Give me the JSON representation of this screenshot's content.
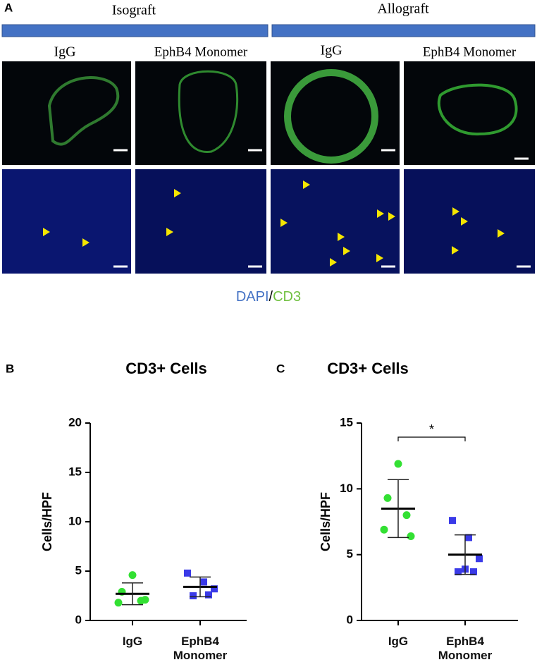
{
  "panel_a": {
    "label": "A",
    "groups": [
      "Isograft",
      "Allograft"
    ],
    "columns": [
      "IgG",
      "EphB4 Monomer",
      "IgG",
      "EphB4 Monomer"
    ],
    "stain": {
      "dapi": "DAPI",
      "separator": "/",
      "cd3": "CD3"
    }
  },
  "chart_data": [
    {
      "type": "scatter",
      "panel": "B",
      "title": "CD3+ Cells",
      "y_label": "Cells/HPF",
      "ylim": [
        0,
        20
      ],
      "yticks": [
        0,
        5,
        10,
        15,
        20
      ],
      "series": [
        {
          "name": "IgG",
          "color": "#33e033",
          "marker": "circle",
          "values": [
            4.6,
            2.9,
            2.0,
            1.8,
            2.1
          ],
          "mean": 2.7,
          "sd": 1.1
        },
        {
          "name": "EphB4 Monomer",
          "color": "#3a3ae8",
          "marker": "square",
          "values": [
            4.8,
            3.9,
            3.2,
            2.5,
            2.6
          ],
          "mean": 3.4,
          "sd": 1.0
        }
      ]
    },
    {
      "type": "scatter",
      "panel": "C",
      "title": "CD3+ Cells",
      "y_label": "Cells/HPF",
      "ylim": [
        0,
        15
      ],
      "yticks": [
        0,
        5,
        10,
        15
      ],
      "annotation": "*",
      "series": [
        {
          "name": "IgG",
          "color": "#33e033",
          "marker": "circle",
          "values": [
            11.9,
            9.3,
            8.0,
            6.9,
            6.4
          ],
          "mean": 8.5,
          "sd": 2.2
        },
        {
          "name": "EphB4 Monomer",
          "color": "#3a3ae8",
          "marker": "square",
          "values": [
            7.6,
            6.3,
            4.7,
            3.7,
            3.7,
            3.9
          ],
          "mean": 5.0,
          "sd": 1.5
        }
      ]
    }
  ]
}
